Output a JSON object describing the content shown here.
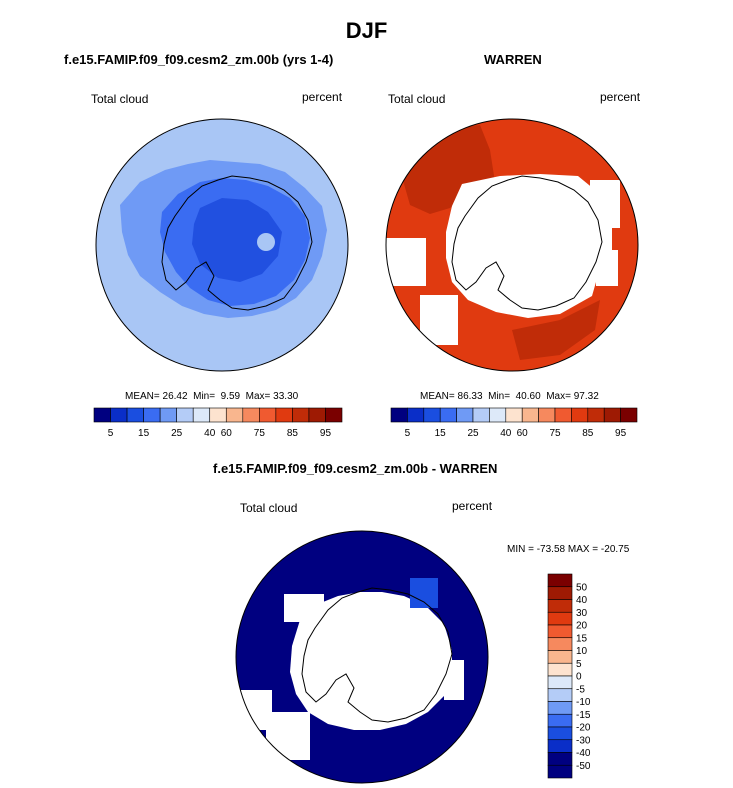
{
  "page_title": "DJF",
  "colors": {
    "scale11": [
      "#000080",
      "#0a2ec8",
      "#1a4ee0",
      "#3a6cf2",
      "#6f9af5",
      "#b4ccf7",
      "#dde9f9",
      "#fde3cf",
      "#f9b68e",
      "#f6895e",
      "#f05a30",
      "#e03a10",
      "#c02c08",
      "#9e1a03",
      "#7a0000"
    ],
    "ocean_model": "#a9c6f5",
    "ice_model_1": "#6f9af5",
    "ice_model_2": "#3a6cf2",
    "ice_model_3": "#2150e0",
    "warren_main": "#e03a10",
    "warren_dark": "#c02c08",
    "diff_main": "#000080",
    "diff_edge": "#1a4ee0"
  },
  "panel1": {
    "title": "f.e15.FAMIP.f09_f09.cesm2_zm.00b (yrs 1-4)",
    "left_label": "Total cloud",
    "right_label": "percent",
    "stats": {
      "mean_label": "MEAN=",
      "mean": "26.42",
      "min_label": "Min=",
      "min": "9.59",
      "max_label": "Max=",
      "max": "33.30"
    },
    "colorbar_ticks": [
      "5",
      "15",
      "25",
      "40",
      "60",
      "75",
      "85",
      "95"
    ]
  },
  "panel2": {
    "title": "WARREN",
    "left_label": "Total cloud",
    "right_label": "percent",
    "stats": {
      "mean_label": "MEAN=",
      "mean": "86.33",
      "min_label": "Min=",
      "min": "40.60",
      "max_label": "Max=",
      "max": "97.32"
    },
    "colorbar_ticks": [
      "5",
      "15",
      "25",
      "40",
      "60",
      "75",
      "85",
      "95"
    ]
  },
  "panel3": {
    "title": "f.e15.FAMIP.f09_f09.cesm2_zm.00b - WARREN",
    "left_label": "Total cloud",
    "right_label": "percent",
    "minmax": "MIN = -73.58  MAX = -20.75",
    "colorbar_ticks": [
      "50",
      "40",
      "30",
      "20",
      "15",
      "10",
      "5",
      "0",
      "-5",
      "-10",
      "-15",
      "-20",
      "-30",
      "-40",
      "-50"
    ]
  },
  "chart_data": [
    {
      "type": "heatmap",
      "projection": "south-polar-stereographic",
      "title": "f.e15.FAMIP.f09_f09.cesm2_zm.00b (yrs 1-4)",
      "variable": "Total cloud",
      "units": "percent",
      "mean": 26.42,
      "min": 9.59,
      "max": 33.3,
      "levels": [
        5,
        10,
        15,
        20,
        25,
        30,
        40,
        50,
        60,
        70,
        75,
        80,
        85,
        90,
        95
      ]
    },
    {
      "type": "heatmap",
      "projection": "south-polar-stereographic",
      "title": "WARREN",
      "variable": "Total cloud",
      "units": "percent",
      "mean": 86.33,
      "min": 40.6,
      "max": 97.32,
      "levels": [
        5,
        10,
        15,
        20,
        25,
        30,
        40,
        50,
        60,
        70,
        75,
        80,
        85,
        90,
        95
      ]
    },
    {
      "type": "heatmap",
      "projection": "south-polar-stereographic",
      "title": "f.e15.FAMIP.f09_f09.cesm2_zm.00b - WARREN",
      "variable": "Total cloud",
      "units": "percent",
      "min": -73.58,
      "max": -20.75,
      "levels": [
        -50,
        -40,
        -30,
        -20,
        -15,
        -10,
        -5,
        0,
        5,
        10,
        15,
        20,
        30,
        40,
        50
      ]
    }
  ]
}
